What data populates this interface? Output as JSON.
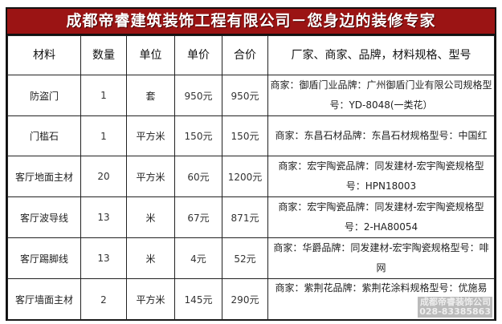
{
  "title": "成都帝睿建筑装饰工程有限公司－您身边的装修专家",
  "headers": [
    "材料",
    "数量",
    "单位",
    "单价",
    "合价",
    "厂家、商家、品牌，材料规格、型号"
  ],
  "rows": [
    {
      "material": "防盗门",
      "qty": "1",
      "unit": "套",
      "price": "950元",
      "total": "950元",
      "desc": "商家：御盾门业品牌：广州御盾门业有限公司规格型号：YD-8048(一类花）"
    },
    {
      "material": "门槛石",
      "qty": "1",
      "unit": "平方米",
      "price": "150元",
      "total": "150元",
      "desc": "商家：东昌石材品牌：东昌石材规格型号：中国红"
    },
    {
      "material": "客厅地面主材",
      "qty": "20",
      "unit": "平方米",
      "price": "60元",
      "total": "1200元",
      "desc": "商家：宏宇陶瓷品牌：同发建材-宏宇陶瓷规格型号：HPN18003"
    },
    {
      "material": "客厅波导线",
      "qty": "13",
      "unit": "米",
      "price": "67元",
      "total": "871元",
      "desc": "商家：宏宇陶瓷品牌：同发建材-宏宇陶瓷规格型号：2-HA80054"
    },
    {
      "material": "客厅踢脚线",
      "qty": "13",
      "unit": "米",
      "price": "4元",
      "total": "52元",
      "desc": "商家：华爵品牌：同发建材-宏宇陶瓷规格型号：啡网"
    },
    {
      "material": "客厅墙面主材",
      "qty": "2",
      "unit": "平方米",
      "price": "145元",
      "total": "290元",
      "desc": "商家：紫荆花品牌：紫荆花涂料规格型号：优施易"
    }
  ],
  "watermark": {
    "line1": "成都帝睿装饰公司",
    "line2": "028-83385863"
  },
  "colors": {
    "title_bg": "#9b1414"
  }
}
